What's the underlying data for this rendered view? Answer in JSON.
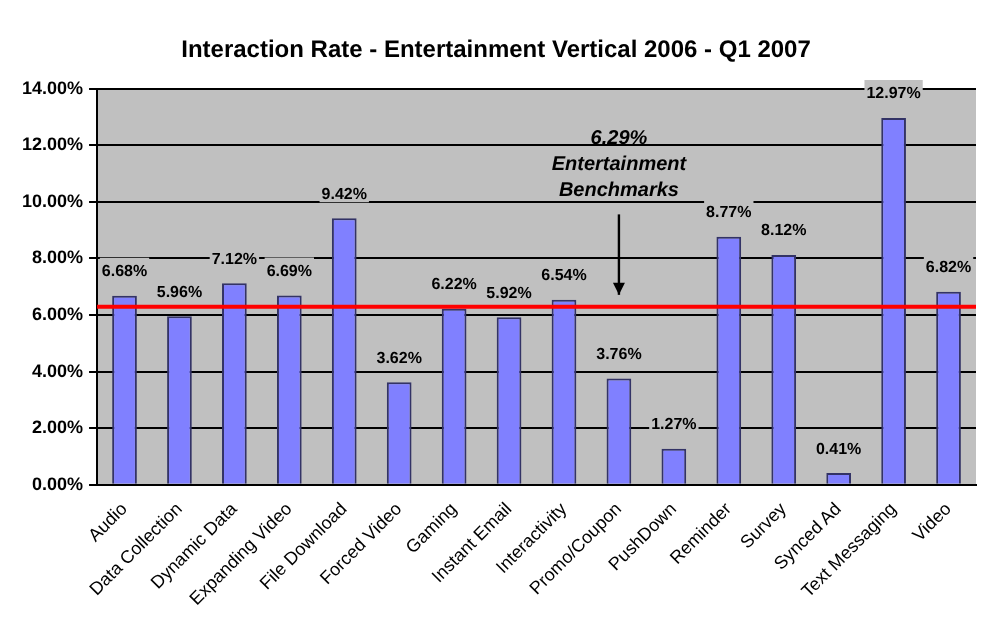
{
  "chart_data": {
    "type": "bar",
    "title": "Interaction Rate - Entertainment Vertical 2006 - Q1 2007",
    "categories": [
      "Audio",
      "Data Collection",
      "Dynamic Data",
      "Expanding Video",
      "File Download",
      "Forced Video",
      "Gaming",
      "Instant Email",
      "Interactivity",
      "Promo/Coupon",
      "PushDown",
      "Reminder",
      "Survey",
      "Synced Ad",
      "Text Messaging",
      "Video"
    ],
    "values": [
      6.68,
      5.96,
      7.12,
      6.69,
      9.42,
      3.62,
      6.22,
      5.92,
      6.54,
      3.76,
      1.27,
      8.77,
      8.12,
      0.41,
      12.97,
      6.82
    ],
    "value_labels": [
      "6.68%",
      "5.96%",
      "7.12%",
      "6.69%",
      "9.42%",
      "3.62%",
      "6.22%",
      "5.92%",
      "6.54%",
      "3.76%",
      "1.27%",
      "8.77%",
      "8.12%",
      "0.41%",
      "12.97%",
      "6.82%"
    ],
    "color": "#8080ff",
    "ylim": [
      0,
      14
    ],
    "yticks": [
      {
        "value": 0,
        "label": "0.00%"
      },
      {
        "value": 2,
        "label": "2.00%"
      },
      {
        "value": 4,
        "label": "4.00%"
      },
      {
        "value": 6,
        "label": "6.00%"
      },
      {
        "value": 8,
        "label": "8.00%"
      },
      {
        "value": 10,
        "label": "10.00%"
      },
      {
        "value": 12,
        "label": "12.00%"
      },
      {
        "value": 14,
        "label": "14.00%"
      }
    ],
    "grid": "y",
    "legend": false,
    "ref_lines": [
      {
        "axis": "y",
        "value": 6.29,
        "label": "6.29% Entertainment Benchmarks",
        "color": "#ff0000"
      }
    ]
  }
}
